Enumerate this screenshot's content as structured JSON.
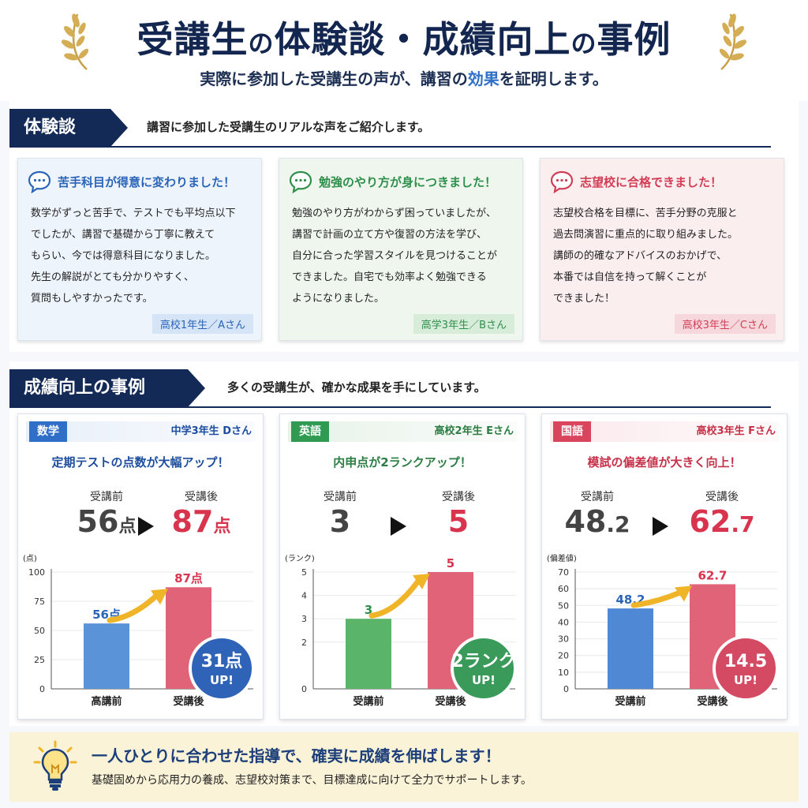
{
  "header": {
    "title_a": "受講生",
    "title_no1": "の",
    "title_b": "体験談・成績向上",
    "title_no2": "の",
    "title_c": "事例",
    "subtitle_a": "実際に参加した受講生の声が、講習の",
    "subtitle_hl": "効果",
    "subtitle_b": "を証明します。"
  },
  "testimonials": {
    "heading": "体験談",
    "description": "講習に参加した受講生のリアルな声をご紹介します。",
    "cards": [
      {
        "title": "苦手科目が得意に変わりました！",
        "lines": [
          "数学がずっと苦手で、テストでも平均点以下",
          "でしたが、講習で基礎から丁寧に教えて",
          "もらい、今では得意科目になりました。",
          "先生の解説がとても分かりやすく、",
          "質問もしやすかったです。"
        ],
        "tag": "高校1年生／Aさん"
      },
      {
        "title": "勉強のやり方が身につきました！",
        "lines": [
          "勉強のやり方がわからず困っていましたが、",
          "講習で計画の立て方や復習の方法を学び、",
          "自分に合った学習スタイルを見つけることが",
          "できました。自宅でも効率よく勉強できる",
          "ようになりました。"
        ],
        "tag": "高学3年生／Bさん"
      },
      {
        "title": "志望校に合格できました！",
        "lines": [
          "志望校合格を目標に、苦手分野の克服と",
          "過去問演習に重点的に取り組みました。",
          "講師の的確なアドバイスのおかげで、",
          "本番では自信を持って解くことが",
          "できました！"
        ],
        "tag": "高校3年生／Cさん"
      }
    ]
  },
  "results": {
    "heading": "成績向上の事例",
    "description": "多くの受講生が、確かな成果を手にしています。",
    "cards": [
      {
        "subject": "数学",
        "student": "中学3年生 Dさん",
        "headline": "定期テストの点数が大幅アップ！",
        "before_label": "受講前",
        "after_label": "受講後",
        "before_value": "56",
        "after_value": "87",
        "unit": "点",
        "up_value": "31点",
        "up_text": "UP!"
      },
      {
        "subject": "英語",
        "student": "高校2年生 Eさん",
        "headline": "内申点が2ランクアップ！",
        "before_label": "受講前",
        "after_label": "受講後",
        "before_value": "3",
        "after_value": "5",
        "unit": "",
        "up_value": "2ランク",
        "up_text": "UP!"
      },
      {
        "subject": "国語",
        "student": "高校3年生 Fさん",
        "headline": "模試の偏差値が大きく向上！",
        "before_label": "受講前",
        "after_label": "受講後",
        "before_value_int": "48",
        "before_value_dec": ".2",
        "after_value_int": "62",
        "after_value_dec": ".7",
        "up_value": "14.5",
        "up_text": "UP!"
      }
    ]
  },
  "chart_data": [
    {
      "type": "bar",
      "ylabel": "(点)",
      "categories": [
        "高講前",
        "受講後"
      ],
      "values": [
        56,
        87
      ],
      "value_labels": [
        "56点",
        "87点"
      ],
      "ylim": [
        0,
        100
      ],
      "yticks": [
        "0",
        "25",
        "50",
        "75",
        "100"
      ]
    },
    {
      "type": "bar",
      "ylabel": "(ランク)",
      "categories": [
        "受講前",
        "受講後"
      ],
      "values": [
        3,
        5
      ],
      "value_labels": [
        "3",
        "5"
      ],
      "ylim": [
        0,
        5
      ],
      "yticks": [
        "0",
        "2",
        "3",
        "4",
        "5"
      ]
    },
    {
      "type": "bar",
      "ylabel": "(偏差値)",
      "categories": [
        "受講前",
        "受講後"
      ],
      "values": [
        48.2,
        62.7
      ],
      "value_labels": [
        "48.2",
        "62.7"
      ],
      "ylim": [
        0,
        70
      ],
      "yticks": [
        "0",
        "10",
        "20",
        "30",
        "40",
        "50",
        "60",
        "70"
      ]
    }
  ],
  "colors": {
    "navy": "#132a56",
    "blue": "#5b93d8",
    "green": "#5ab56b",
    "red": "#e06377",
    "accent": "#f0b429"
  },
  "footer": {
    "icon": "lightbulb-icon",
    "headline": "一人ひとりに合わせた指導で、確実に成績を伸ばします！",
    "text": "基礎固めから応用力の養成、志望校対策まで、目標達成に向けて全力でサポートします。"
  }
}
